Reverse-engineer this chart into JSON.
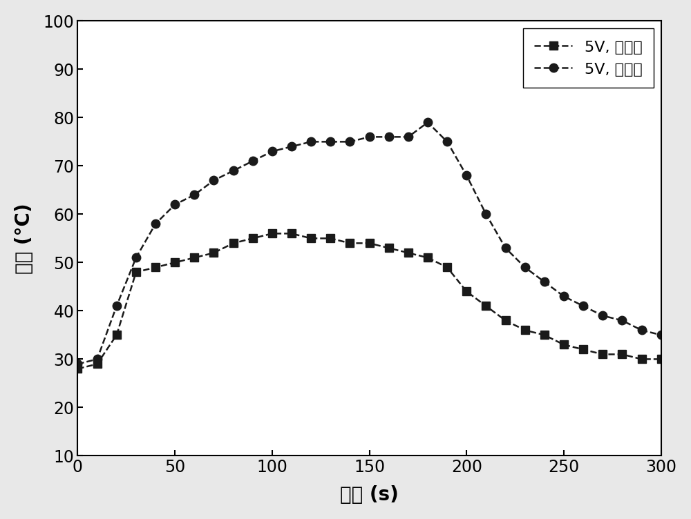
{
  "series1_label": "5V, 处理前",
  "series2_label": "5V, 处理后",
  "series1_x": [
    0,
    10,
    20,
    30,
    40,
    50,
    60,
    70,
    80,
    90,
    100,
    110,
    120,
    130,
    140,
    150,
    160,
    170,
    180,
    190,
    200,
    210,
    220,
    230,
    240,
    250,
    260,
    270,
    280,
    290,
    300
  ],
  "series1_y": [
    28,
    29,
    35,
    48,
    49,
    50,
    51,
    52,
    54,
    55,
    56,
    56,
    55,
    55,
    54,
    54,
    53,
    52,
    51,
    49,
    44,
    41,
    38,
    36,
    35,
    33,
    32,
    31,
    31,
    30,
    30
  ],
  "series2_x": [
    0,
    10,
    20,
    30,
    40,
    50,
    60,
    70,
    80,
    90,
    100,
    110,
    120,
    130,
    140,
    150,
    160,
    170,
    180,
    190,
    200,
    210,
    220,
    230,
    240,
    250,
    260,
    270,
    280,
    290,
    300
  ],
  "series2_y": [
    29,
    30,
    41,
    51,
    58,
    62,
    64,
    67,
    69,
    71,
    73,
    74,
    75,
    75,
    75,
    76,
    76,
    76,
    79,
    75,
    68,
    60,
    53,
    49,
    46,
    43,
    41,
    39,
    38,
    36,
    35
  ],
  "xlabel": "时间 (s)",
  "ylabel": "温度 (°C)",
  "xlim": [
    0,
    300
  ],
  "ylim": [
    10,
    100
  ],
  "xticks": [
    0,
    50,
    100,
    150,
    200,
    250,
    300
  ],
  "yticks": [
    10,
    20,
    30,
    40,
    50,
    60,
    70,
    80,
    90,
    100
  ],
  "line_color": "#1a1a1a",
  "background_color": "#e8e8e8",
  "plot_bg_color": "#ffffff",
  "marker_size": 9,
  "line_width": 1.8,
  "label_fontsize": 20,
  "tick_fontsize": 17,
  "legend_fontsize": 16
}
